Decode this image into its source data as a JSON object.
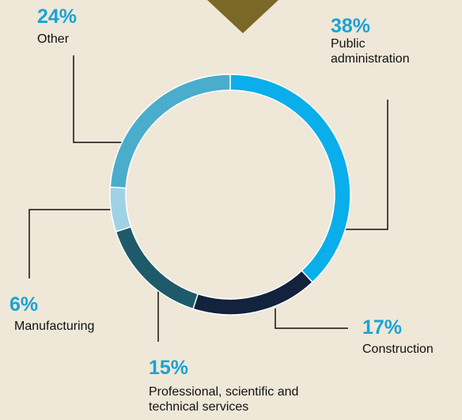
{
  "chart_data": {
    "type": "donut",
    "categories": [
      "Public administration",
      "Construction",
      "Professional, scientific and technical services",
      "Manufacturing",
      "Other"
    ],
    "values": [
      38,
      17,
      15,
      6,
      24
    ],
    "value_labels": [
      "38%",
      "17%",
      "15%",
      "6%",
      "24%"
    ],
    "colors": [
      "#0aaeea",
      "#13223d",
      "#1f5a6a",
      "#9fd2e5",
      "#4aadcc"
    ]
  }
}
